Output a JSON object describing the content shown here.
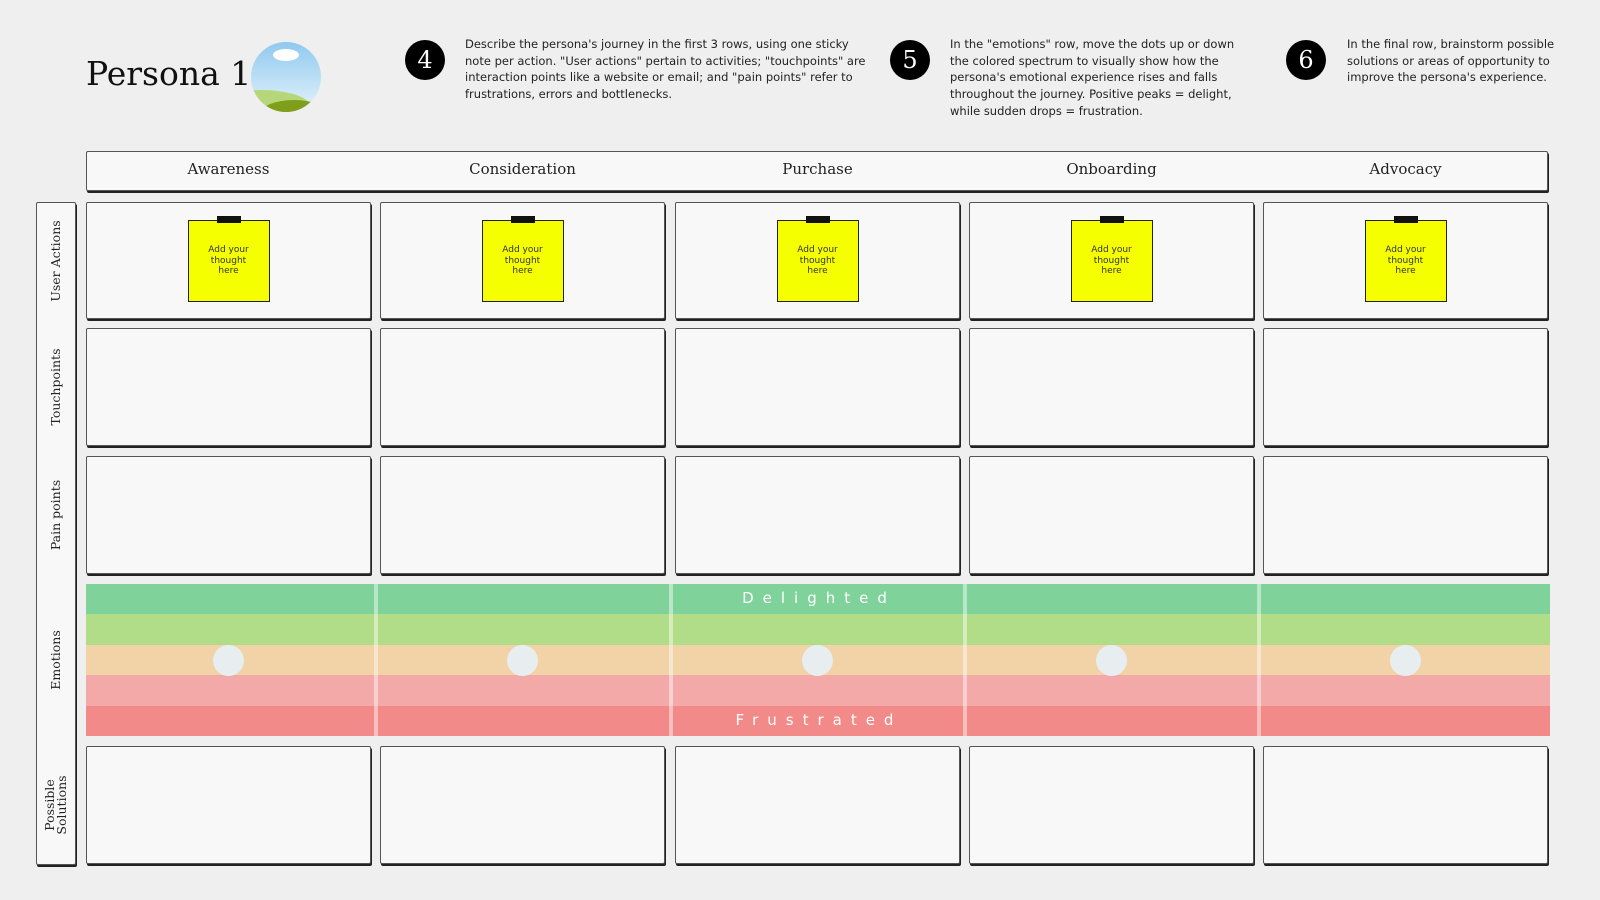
{
  "header": {
    "title": "Persona 1"
  },
  "instructions": [
    {
      "number": "4",
      "text": "Describe the persona's journey in the first 3 rows, using one sticky note per action. \"User actions\" pertain to activities; \"touchpoints\" are interaction points like a website or email; and \"pain points\" refer to frustrations, errors and bottlenecks."
    },
    {
      "number": "5",
      "text": "In the \"emotions\" row, move the dots up or down the colored spectrum to visually show how the persona's emotional experience rises and falls throughout the journey. Positive peaks = delight, while sudden drops = frustration."
    },
    {
      "number": "6",
      "text": "In the final row, brainstorm possible solutions or areas of opportunity to improve the persona's experience."
    }
  ],
  "stages": [
    "Awareness",
    "Consideration",
    "Purchase",
    "Onboarding",
    "Advocacy"
  ],
  "rows": [
    "User Actions",
    "Touchpoints",
    "Pain points",
    "Emotions",
    "Possible Solutions"
  ],
  "sticky_notes": [
    "Add your thought here",
    "Add your thought here",
    "Add your thought here",
    "Add your thought here",
    "Add your thought here"
  ],
  "emotions": {
    "top": "Delighted",
    "bottom": "Frustrated"
  }
}
